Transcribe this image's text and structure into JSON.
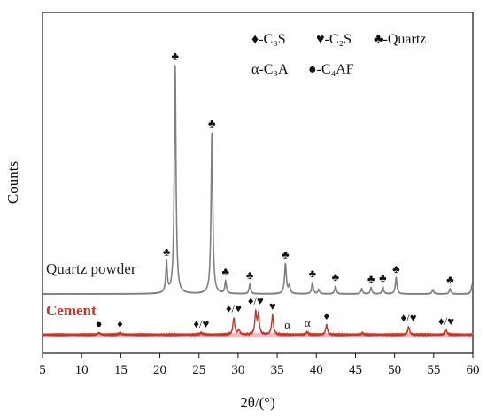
{
  "chart_data": {
    "type": "line",
    "xlabel": "2θ/(°)",
    "ylabel": "Counts",
    "xlim": [
      5,
      60
    ],
    "xticks": [
      5,
      10,
      15,
      20,
      25,
      30,
      35,
      40,
      45,
      50,
      55,
      60
    ],
    "legend": {
      "placement": "top-right",
      "entries": [
        {
          "symbol": "♦",
          "label": "-C₃S"
        },
        {
          "symbol": "♥",
          "label": "-C₂S"
        },
        {
          "symbol": "♣",
          "label": "-Quartz"
        },
        {
          "symbol": "α",
          "label": "-C₃A"
        },
        {
          "symbol": "●",
          "label": "-C₄AF"
        }
      ]
    },
    "colors": {
      "quartz": "#808080",
      "cement": "#c0392b",
      "cement_fill": "#f4b9c4"
    },
    "series": [
      {
        "name": "Quartz powder",
        "baseline": 0,
        "peaks": [
          {
            "x": 20.85,
            "y": 34,
            "w": 0.12,
            "label": "♣"
          },
          {
            "x": 21.95,
            "y": 258,
            "w": 0.13,
            "label": "♣"
          },
          {
            "x": 26.65,
            "y": 182,
            "w": 0.13,
            "label": "♣"
          },
          {
            "x": 28.4,
            "y": 14,
            "w": 0.12,
            "label": "♣"
          },
          {
            "x": 31.5,
            "y": 11,
            "w": 0.12,
            "label": "♣"
          },
          {
            "x": 36.05,
            "y": 34,
            "w": 0.14,
            "label": "♣"
          },
          {
            "x": 36.55,
            "y": 9,
            "w": 0.12,
            "label": ""
          },
          {
            "x": 39.5,
            "y": 13,
            "w": 0.12,
            "label": "♣"
          },
          {
            "x": 40.3,
            "y": 5,
            "w": 0.12,
            "label": ""
          },
          {
            "x": 42.45,
            "y": 9,
            "w": 0.12,
            "label": "♣"
          },
          {
            "x": 45.8,
            "y": 6,
            "w": 0.12,
            "label": ""
          },
          {
            "x": 47.0,
            "y": 7,
            "w": 0.12,
            "label": "♣"
          },
          {
            "x": 48.5,
            "y": 8,
            "w": 0.12,
            "label": "♣"
          },
          {
            "x": 50.2,
            "y": 18,
            "w": 0.13,
            "label": "♣"
          },
          {
            "x": 54.9,
            "y": 5,
            "w": 0.12,
            "label": ""
          },
          {
            "x": 57.1,
            "y": 6,
            "w": 0.12,
            "label": "♣"
          },
          {
            "x": 59.9,
            "y": 10,
            "w": 0.12,
            "label": ""
          }
        ]
      },
      {
        "name": "Cement",
        "baseline": 0,
        "peaks": [
          {
            "x": 12.2,
            "y": 2,
            "w": 0.2,
            "label": "●"
          },
          {
            "x": 14.9,
            "y": 2,
            "w": 0.2,
            "label": "♦"
          },
          {
            "x": 25.3,
            "y": 2,
            "w": 0.2,
            "label": "♦/♥"
          },
          {
            "x": 29.45,
            "y": 19,
            "w": 0.14,
            "label": "♦/♥"
          },
          {
            "x": 30.1,
            "y": 5,
            "w": 0.15,
            "label": ""
          },
          {
            "x": 32.25,
            "y": 25,
            "w": 0.13,
            "label": "♦/♥"
          },
          {
            "x": 32.6,
            "y": 22,
            "w": 0.13,
            "label": ""
          },
          {
            "x": 34.4,
            "y": 22,
            "w": 0.14,
            "label": "♥"
          },
          {
            "x": 38.85,
            "y": 3,
            "w": 0.15,
            "label": "α"
          },
          {
            "x": 41.3,
            "y": 11,
            "w": 0.14,
            "label": "♦"
          },
          {
            "x": 45.9,
            "y": 2,
            "w": 0.15,
            "label": ""
          },
          {
            "x": 51.8,
            "y": 9,
            "w": 0.14,
            "label": "♦/♥"
          },
          {
            "x": 56.6,
            "y": 5,
            "w": 0.14,
            "label": "♦/♥"
          }
        ],
        "extra_labels": [
          {
            "x": 36.3,
            "text": "α"
          }
        ]
      }
    ]
  }
}
